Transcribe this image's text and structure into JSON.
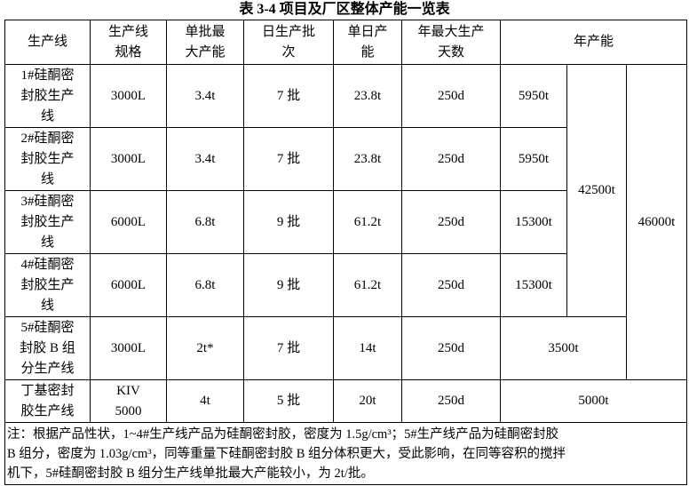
{
  "title": "表 3-4  项目及厂区整体产能一览表",
  "header": [
    [
      "生产线"
    ],
    [
      "生产线",
      "规格"
    ],
    [
      "单批最",
      "大产能"
    ],
    [
      "日生产批",
      "次"
    ],
    [
      "单日产",
      "能"
    ],
    [
      "年最大生产",
      "天数"
    ],
    [
      "年产能"
    ]
  ],
  "rows": [
    {
      "line": [
        "1#硅酮密",
        "封胶生产",
        "线"
      ],
      "spec": [
        "3000L"
      ],
      "batch": "3.4t",
      "batches_per_day": "7 批",
      "daily": "23.8t",
      "days": "250d",
      "annual": "5950t"
    },
    {
      "line": [
        "2#硅酮密",
        "封胶生产",
        "线"
      ],
      "spec": [
        "3000L"
      ],
      "batch": "3.4t",
      "batches_per_day": "7 批",
      "daily": "23.8t",
      "days": "250d",
      "annual": "5950t"
    },
    {
      "line": [
        "3#硅酮密",
        "封胶生产",
        "线"
      ],
      "spec": [
        "6000L"
      ],
      "batch": "6.8t",
      "batches_per_day": "9 批",
      "daily": "61.2t",
      "days": "250d",
      "annual": "15300t"
    },
    {
      "line": [
        "4#硅酮密",
        "封胶生产",
        "线"
      ],
      "spec": [
        "6000L"
      ],
      "batch": "6.8t",
      "batches_per_day": "9 批",
      "daily": "61.2t",
      "days": "250d",
      "annual": "15300t"
    },
    {
      "line": [
        "5#硅酮密",
        "封胶 B 组",
        "分生产线"
      ],
      "spec": [
        "3000L"
      ],
      "batch": "2t*",
      "batches_per_day": "7 批",
      "daily": "14t",
      "days": "250d",
      "annual": "3500t"
    },
    {
      "line": [
        "丁基密封",
        "胶生产线"
      ],
      "spec": [
        "KIV",
        "5000"
      ],
      "batch": "4t",
      "batches_per_day": "5 批",
      "daily": "20t",
      "days": "250d",
      "annual": "5000t"
    }
  ],
  "silicone_total": "42500t",
  "plant_total": "46000t",
  "note": [
    "注：根据产品性状，1~4#生产线产品为硅酮密封胶，密度为 1.5g/cm³；5#生产线产品为硅酮密封胶",
    "B 组分，密度为 1.03g/cm³，同等重量下硅酮密封胶 B 组分体积更大，受此影响，在同等容积的搅拌",
    "机下，5#硅酮密封胶 B 组分生产线单批最大产能较小，为 2t/批。"
  ]
}
